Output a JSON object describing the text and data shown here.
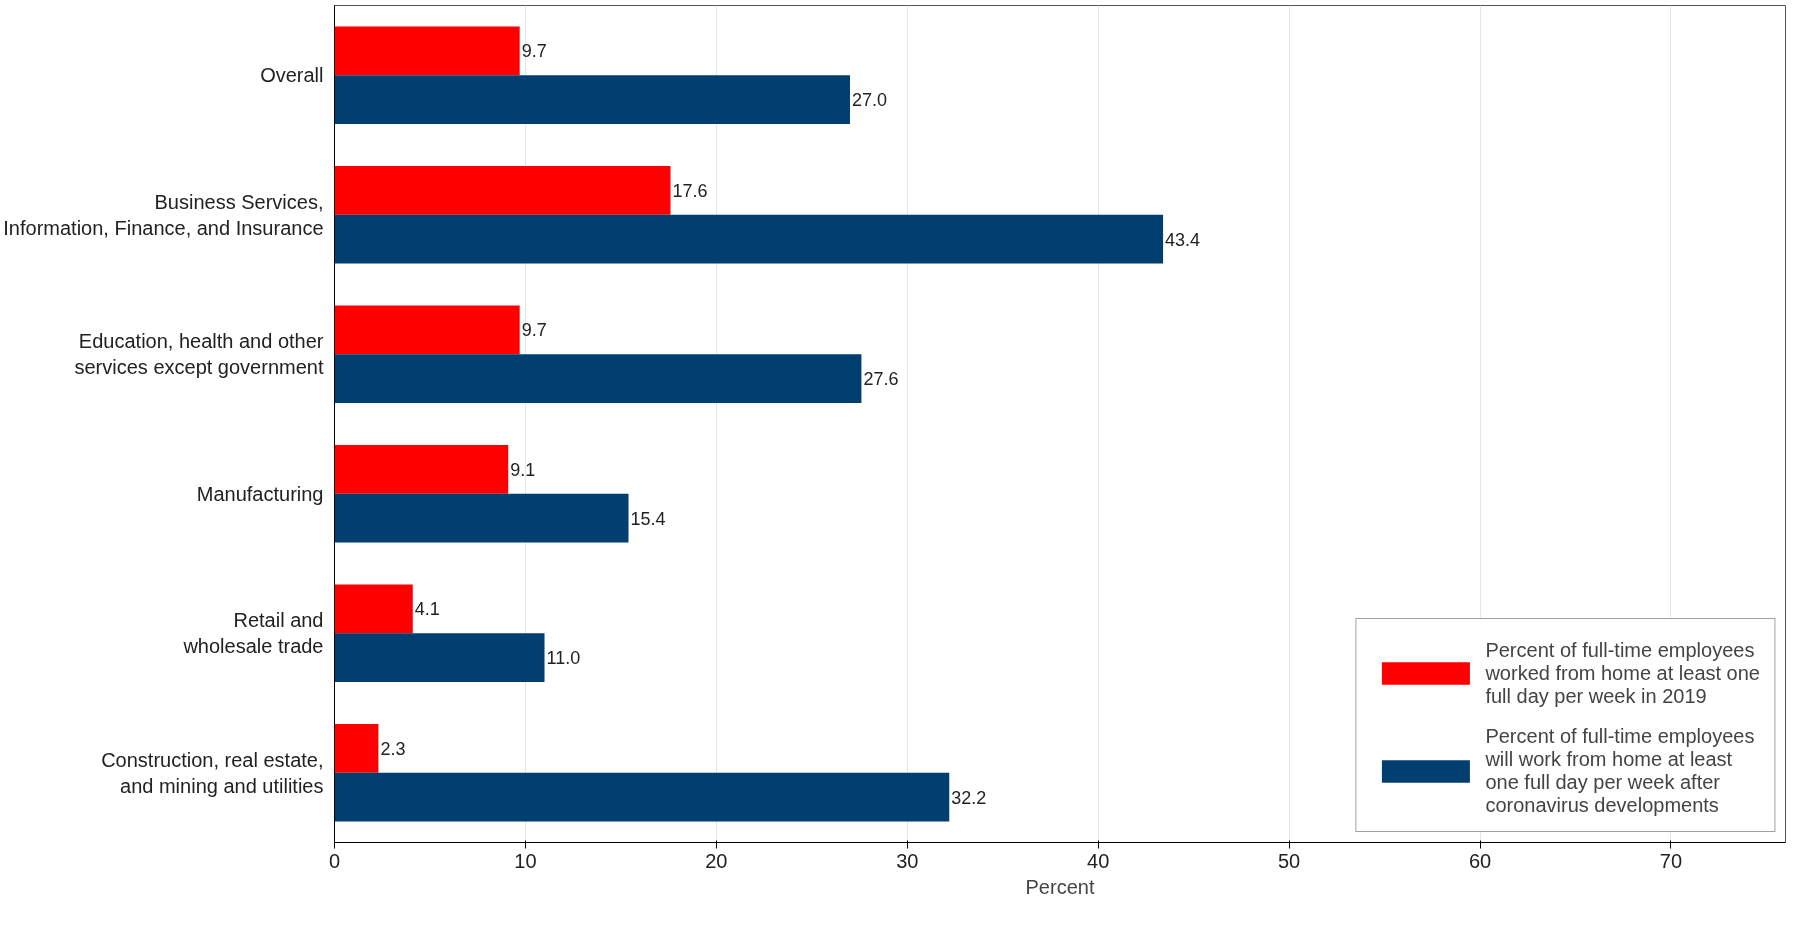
{
  "chart_data": {
    "type": "bar",
    "orientation": "horizontal",
    "xlabel": "Percent",
    "categories": [
      "Overall",
      "Business Services,\nInformation, Finance, and Insurance",
      "Education, health and other\nservices except government",
      "Manufacturing",
      "Retail and\nwholesale trade",
      "Construction, real estate,\nand mining and utilities"
    ],
    "series": [
      {
        "name": "Percent of full-time employees worked from home at least one full day per week in 2019",
        "color": "#ff0000",
        "values": [
          9.7,
          17.6,
          9.7,
          9.1,
          4.1,
          2.3
        ],
        "value_labels": [
          "9.7",
          "17.6",
          "9.7",
          "9.1",
          "4.1",
          "2.3"
        ]
      },
      {
        "name": "Percent of full-time employees will work from home at least one full day per week after coronavirus developments",
        "color": "#003f6f",
        "values": [
          27.0,
          43.4,
          27.6,
          15.4,
          11.0,
          32.2
        ],
        "value_labels": [
          "27.0",
          "43.4",
          "27.6",
          "15.4",
          "11.0",
          "32.2"
        ]
      }
    ],
    "xlim": [
      0,
      76
    ],
    "xticks": [
      0,
      10,
      20,
      30,
      40,
      50,
      60,
      70
    ],
    "grid": "x",
    "legend": "bottom right"
  }
}
